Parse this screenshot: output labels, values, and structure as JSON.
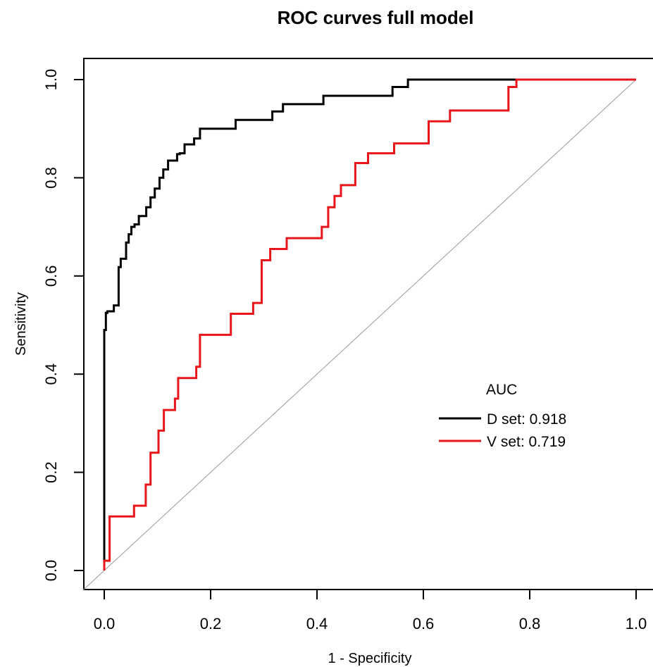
{
  "chart_data": {
    "type": "line",
    "title": "ROC curves full model",
    "xlabel": "1 - Specificity",
    "ylabel": "Sensitivity",
    "xlim": [
      0,
      1
    ],
    "ylim": [
      0,
      1
    ],
    "xticks": [
      "0.0",
      "0.2",
      "0.4",
      "0.6",
      "0.8",
      "1.0"
    ],
    "yticks": [
      "0.0",
      "0.2",
      "0.4",
      "0.6",
      "0.8",
      "1.0"
    ],
    "grid": false,
    "legend": {
      "title": "AUC",
      "placement": "right",
      "entries": [
        {
          "label": "D set: 0.918",
          "color": "#000000"
        },
        {
          "label": "V set: 0.719",
          "color": "#e8161b"
        }
      ]
    },
    "reference_line": {
      "x": [
        0,
        1
      ],
      "y": [
        0,
        1
      ],
      "color": "#9a9a9a"
    },
    "series": [
      {
        "label": "D set: 0.918",
        "auc": 0.918,
        "color": "#000000",
        "x": [
          0.0,
          0.0,
          0.003,
          0.003,
          0.006,
          0.006,
          0.018,
          0.018,
          0.027,
          0.027,
          0.031,
          0.031,
          0.041,
          0.041,
          0.046,
          0.046,
          0.051,
          0.051,
          0.057,
          0.057,
          0.065,
          0.065,
          0.079,
          0.079,
          0.087,
          0.087,
          0.095,
          0.095,
          0.104,
          0.104,
          0.111,
          0.111,
          0.12,
          0.12,
          0.137,
          0.137,
          0.142,
          0.142,
          0.151,
          0.151,
          0.169,
          0.169,
          0.18,
          0.18,
          0.247,
          0.247,
          0.316,
          0.316,
          0.336,
          0.336,
          0.412,
          0.412,
          0.542,
          0.542,
          0.571,
          0.571,
          0.689,
          0.689,
          1.0
        ],
        "y": [
          0.0,
          0.49,
          0.49,
          0.525,
          0.525,
          0.528,
          0.528,
          0.54,
          0.54,
          0.618,
          0.618,
          0.635,
          0.635,
          0.668,
          0.668,
          0.685,
          0.685,
          0.7,
          0.7,
          0.705,
          0.705,
          0.722,
          0.722,
          0.74,
          0.74,
          0.76,
          0.76,
          0.778,
          0.778,
          0.8,
          0.8,
          0.817,
          0.817,
          0.835,
          0.835,
          0.848,
          0.848,
          0.85,
          0.85,
          0.868,
          0.868,
          0.88,
          0.88,
          0.9,
          0.9,
          0.918,
          0.918,
          0.935,
          0.935,
          0.95,
          0.95,
          0.967,
          0.967,
          0.985,
          0.985,
          1.0,
          1.0,
          1.0,
          1.0
        ]
      },
      {
        "label": "V set: 0.719",
        "auc": 0.719,
        "color": "#e8161b",
        "x": [
          0.0,
          0.0,
          0.01,
          0.01,
          0.056,
          0.056,
          0.078,
          0.078,
          0.087,
          0.087,
          0.102,
          0.102,
          0.112,
          0.112,
          0.133,
          0.133,
          0.139,
          0.139,
          0.173,
          0.173,
          0.18,
          0.18,
          0.238,
          0.238,
          0.28,
          0.28,
          0.296,
          0.296,
          0.312,
          0.312,
          0.343,
          0.343,
          0.409,
          0.409,
          0.421,
          0.421,
          0.433,
          0.433,
          0.445,
          0.445,
          0.472,
          0.472,
          0.496,
          0.496,
          0.545,
          0.545,
          0.61,
          0.61,
          0.65,
          0.65,
          0.76,
          0.76,
          0.775,
          0.775,
          1.0
        ],
        "y": [
          0.0,
          0.02,
          0.02,
          0.11,
          0.11,
          0.132,
          0.132,
          0.175,
          0.175,
          0.24,
          0.24,
          0.285,
          0.285,
          0.327,
          0.327,
          0.35,
          0.35,
          0.392,
          0.392,
          0.415,
          0.415,
          0.48,
          0.48,
          0.523,
          0.523,
          0.545,
          0.545,
          0.632,
          0.632,
          0.655,
          0.655,
          0.677,
          0.677,
          0.7,
          0.7,
          0.74,
          0.74,
          0.763,
          0.763,
          0.785,
          0.785,
          0.83,
          0.83,
          0.85,
          0.85,
          0.87,
          0.87,
          0.915,
          0.915,
          0.937,
          0.937,
          0.985,
          0.985,
          1.0,
          1.0
        ]
      }
    ]
  }
}
